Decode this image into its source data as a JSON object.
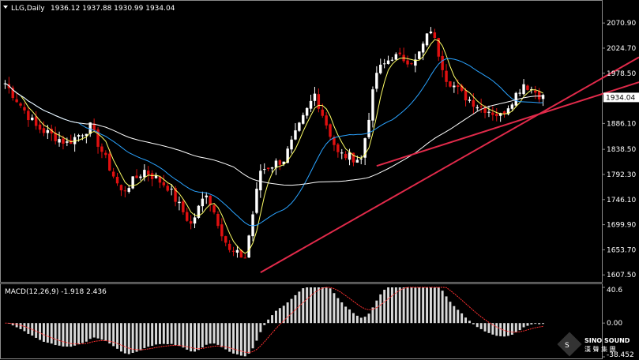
{
  "chart_data": [
    {
      "type": "candlestick",
      "header": {
        "symbol_label": "LLG,Daily",
        "ohlc_text": "1936.12 1937.88 1930.99 1934.04"
      },
      "last_price_label": "1934.04",
      "y_ticks": [
        "2070.90",
        "2024.70",
        "1978.50",
        "1934.04",
        "1886.10",
        "1838.50",
        "1792.30",
        "1746.10",
        "1699.90",
        "1653.70",
        "1607.50"
      ],
      "ylim": [
        1602,
        2090
      ],
      "candle_count": 140,
      "price_path": {
        "bar_index": [
          0,
          8,
          16,
          22,
          30,
          36,
          42,
          48,
          52,
          58,
          62,
          66,
          72,
          76,
          80,
          86,
          92,
          96,
          100,
          106,
          110,
          114,
          118,
          122,
          128,
          134,
          139
        ],
        "close": [
          1960,
          1880,
          1850,
          1880,
          1760,
          1800,
          1770,
          1700,
          1760,
          1650,
          1640,
          1800,
          1820,
          1880,
          1940,
          1830,
          1820,
          1980,
          2010,
          2000,
          2060,
          1970,
          1940,
          1920,
          1900,
          1960,
          1934
        ]
      },
      "ma_colors": {
        "ma5": "#ffff66",
        "ma20": "#2aa3ff",
        "ma60": "#ffffff"
      },
      "trendlines": {
        "color": "#e02a4a"
      },
      "candle_colors": {
        "up": "#ffffff",
        "down": "#e01010"
      }
    },
    {
      "type": "macd",
      "label": "MACD(12,26,9) -1.918 2.436",
      "y_ticks": [
        "40.6",
        "0.00",
        "-38.452"
      ],
      "ylim": [
        -38.452,
        40.6
      ],
      "colors": {
        "histogram": "#d9d9d9",
        "signal": "#ff3030"
      }
    }
  ],
  "watermark": {
    "brand": "SINO SOUND",
    "chinese": "漢 聲 集 團"
  }
}
